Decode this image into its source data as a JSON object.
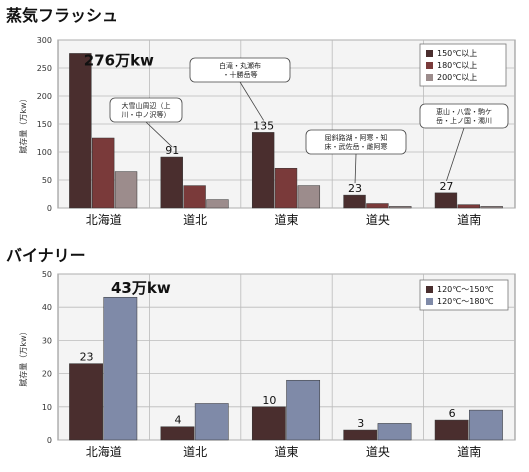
{
  "section_titles": [
    "蒸気フラッシュ",
    "バイナリー"
  ],
  "chart_data": [
    {
      "type": "bar",
      "title": "蒸気フラッシュ",
      "ylabel": "賦存量（万kw）",
      "ylim": [
        0,
        300
      ],
      "yticks": [
        0,
        50,
        100,
        150,
        200,
        250,
        300
      ],
      "categories": [
        "北海道",
        "道北",
        "道東",
        "道央",
        "道南"
      ],
      "series": [
        {
          "name": "150℃以上",
          "values": [
            276,
            91,
            135,
            23,
            27
          ],
          "color": "#4a2e2e"
        },
        {
          "name": "180℃以上",
          "values": [
            125,
            40,
            71,
            8,
            6
          ],
          "color": "#7a3a3a"
        },
        {
          "name": "200℃以上",
          "values": [
            65,
            15,
            40,
            3,
            3
          ],
          "color": "#9c8c8c"
        }
      ],
      "data_labels": [
        "276万kw",
        "91",
        "135",
        "23",
        "27"
      ],
      "annotations": [
        "大雪山周辺（上川・中ノ沢等）",
        "屈斜路湖・阿寒・知床・武佐岳・雌阿寒",
        "白滝・丸瀬布・十勝岳等",
        "恵山・八雲・駒ケ岳・上ノ国・濁川"
      ],
      "grid": true,
      "legend": "top-right"
    },
    {
      "type": "bar",
      "title": "バイナリー",
      "ylabel": "賦存量（万kw）",
      "ylim": [
        0,
        50
      ],
      "yticks": [
        0,
        10,
        20,
        30,
        40,
        50
      ],
      "categories": [
        "北海道",
        "道北",
        "道東",
        "道央",
        "道南"
      ],
      "series": [
        {
          "name": "120℃～150℃",
          "values": [
            23,
            4,
            10,
            3,
            6
          ],
          "color": "#4a2e2e"
        },
        {
          "name": "120℃～180℃",
          "values": [
            43,
            11,
            18,
            5,
            9
          ],
          "color": "#7f8aa8"
        }
      ],
      "data_labels": [
        "43万kw",
        "23",
        "4",
        "10",
        "3",
        "6"
      ],
      "grid": true,
      "legend": "top-right"
    }
  ]
}
